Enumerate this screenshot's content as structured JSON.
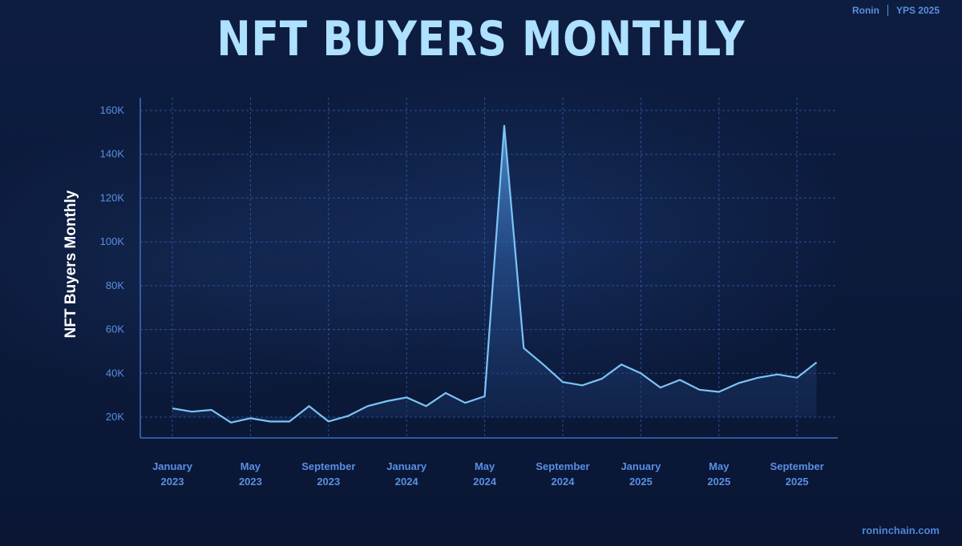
{
  "brand": {
    "left": "Ronin",
    "right": "YPS 2025"
  },
  "footer": "roninchain.com",
  "colors": {
    "line": "#7cc4f5",
    "grid": "#2f5fae",
    "axis": "#3f6fc0",
    "title": "#aee0ff",
    "tick": "#5a8fe4"
  },
  "chart_data": {
    "type": "area",
    "title": "NFT BUYERS MONTHLY",
    "xlabel": "",
    "ylabel": "NFT Buyers Monthly",
    "ylim": [
      10000,
      170000
    ],
    "yticks": [
      20000,
      40000,
      60000,
      80000,
      100000,
      120000,
      140000,
      160000
    ],
    "ytick_labels": [
      "20K",
      "40K",
      "60K",
      "80K",
      "100K",
      "120K",
      "140K",
      "160K"
    ],
    "xtick_labels": [
      [
        "January",
        "2023"
      ],
      [
        "May",
        "2023"
      ],
      [
        "September",
        "2023"
      ],
      [
        "January",
        "2024"
      ],
      [
        "May",
        "2024"
      ],
      [
        "September",
        "2024"
      ],
      [
        "January",
        "2025"
      ],
      [
        "May",
        "2025"
      ],
      [
        "September",
        "2025"
      ]
    ],
    "xtick_index": [
      0,
      4,
      8,
      12,
      16,
      20,
      24,
      28,
      32
    ],
    "grid": true,
    "x": [
      "2023-01",
      "2023-02",
      "2023-03",
      "2023-04",
      "2023-05",
      "2023-06",
      "2023-07",
      "2023-08",
      "2023-09",
      "2023-10",
      "2023-11",
      "2023-12",
      "2024-01",
      "2024-02",
      "2024-03",
      "2024-04",
      "2024-05",
      "2024-06",
      "2024-07",
      "2024-08",
      "2024-09",
      "2024-10",
      "2024-11",
      "2024-12",
      "2025-01",
      "2025-02",
      "2025-03",
      "2025-04",
      "2025-05",
      "2025-06",
      "2025-07",
      "2025-08",
      "2025-09",
      "2025-10"
    ],
    "values": [
      24000,
      22500,
      23300,
      17500,
      19500,
      18000,
      18000,
      25000,
      18000,
      20500,
      25000,
      27300,
      29000,
      25000,
      31000,
      26500,
      29500,
      153000,
      51500,
      44000,
      36000,
      34500,
      37500,
      44000,
      40000,
      33500,
      37000,
      32500,
      31500,
      35500,
      38000,
      39500,
      38000,
      45000
    ]
  }
}
